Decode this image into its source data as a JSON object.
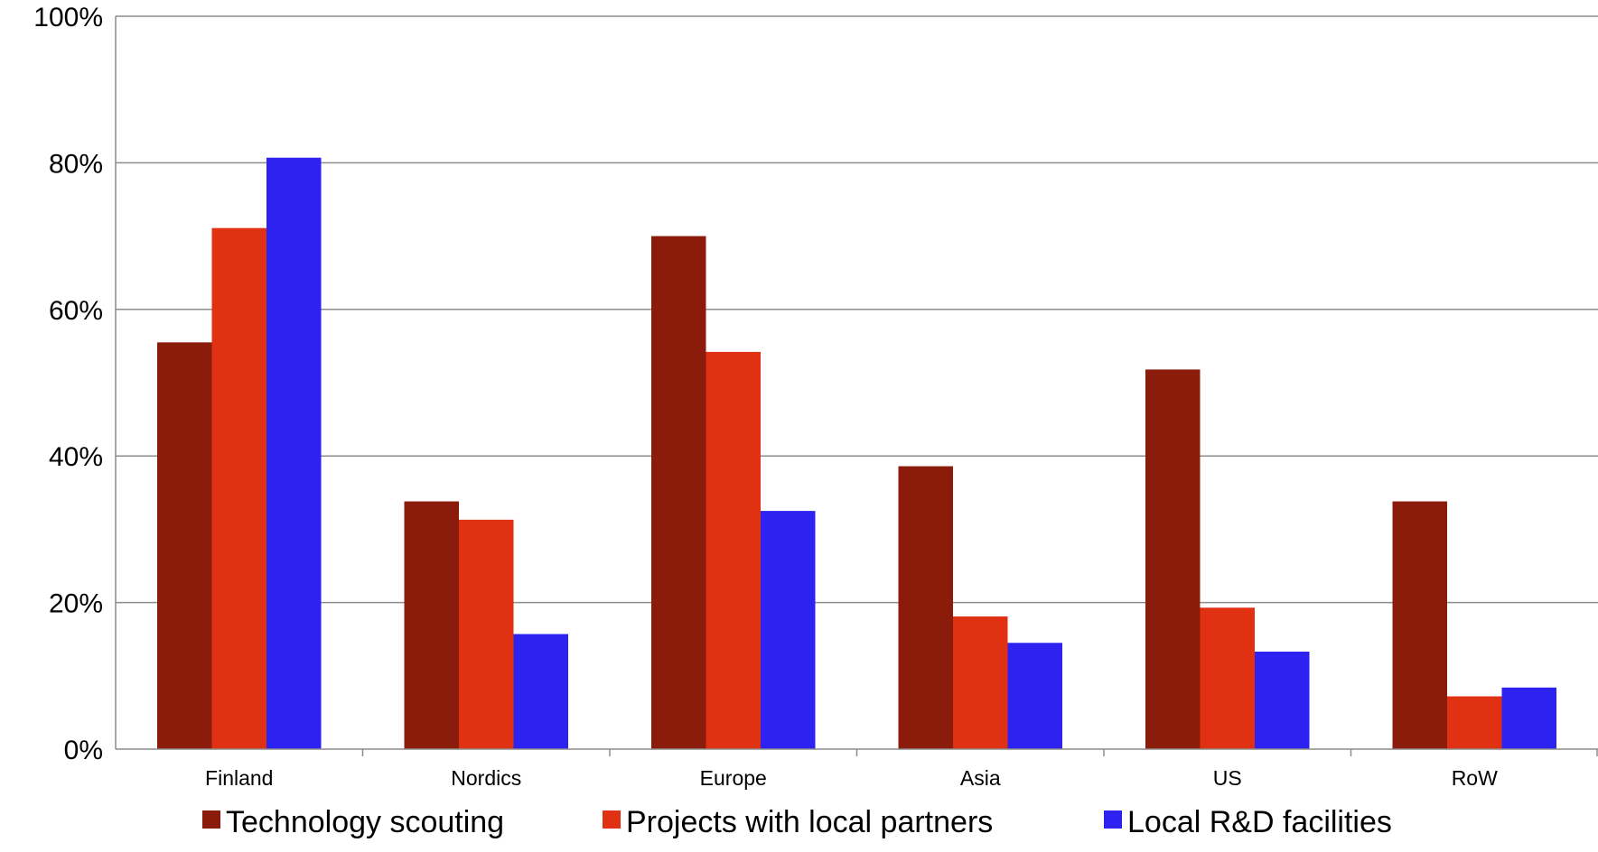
{
  "chart_data": {
    "type": "bar",
    "categories": [
      "Finland",
      "Nordics",
      "Europe",
      "Asia",
      "US",
      "RoW"
    ],
    "series": [
      {
        "name": "Technology scouting",
        "color": "#8b1c0c",
        "values": [
          55.5,
          33.8,
          70.0,
          38.6,
          51.8,
          33.8
        ]
      },
      {
        "name": "Projects with local partners",
        "color": "#e03112",
        "values": [
          71.1,
          31.3,
          54.2,
          18.1,
          19.3,
          7.2
        ]
      },
      {
        "name": "Local R&D facilities",
        "color": "#2e22f0",
        "values": [
          80.7,
          15.7,
          32.5,
          14.5,
          13.3,
          8.4
        ]
      }
    ],
    "ylim": [
      0,
      100
    ],
    "yticks": [
      "0%",
      "20%",
      "40%",
      "60%",
      "80%",
      "100%"
    ],
    "ytick_values": [
      0,
      20,
      40,
      60,
      80,
      100
    ],
    "grid": true,
    "legend": "bottom",
    "title": "",
    "xlabel": "",
    "ylabel": ""
  }
}
